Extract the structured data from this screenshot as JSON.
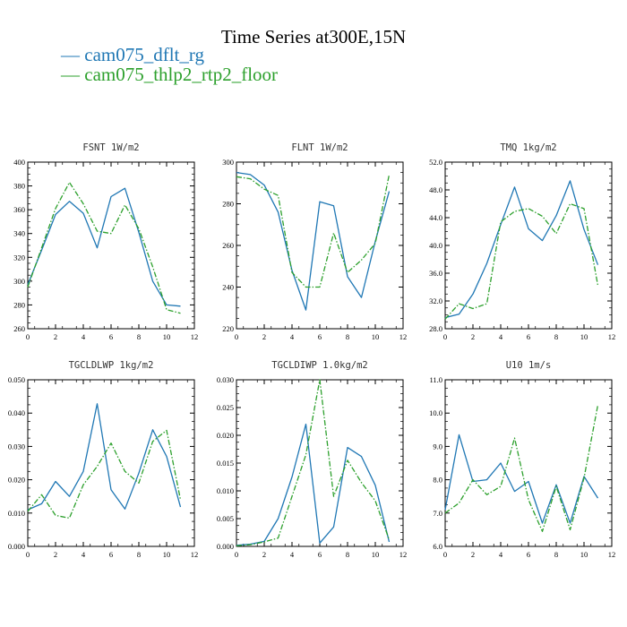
{
  "figure": {
    "title": "Time Series at300E,15N",
    "legend": [
      {
        "label": "— cam075_dflt_rg",
        "color": "#1f77b4"
      },
      {
        "label": "— cam075_thlp2_rtp2_floor",
        "color": "#2ca02c"
      }
    ]
  },
  "chart_data": [
    {
      "type": "line",
      "title": "FSNT   1W/m2",
      "x": [
        0,
        1,
        2,
        3,
        4,
        5,
        6,
        7,
        8,
        9,
        10,
        11
      ],
      "xlim": [
        0,
        12
      ],
      "xticks": [
        "0",
        "2",
        "4",
        "6",
        "8",
        "10",
        "12"
      ],
      "ylim": [
        260,
        400
      ],
      "yticks": [
        "260",
        "280",
        "300",
        "320",
        "340",
        "360",
        "380",
        "400"
      ],
      "series": [
        {
          "name": "cam075_dflt_rg",
          "color": "#1f77b4",
          "dashed": false,
          "values": [
            297,
            326,
            356,
            367,
            357,
            328,
            371,
            378,
            341,
            300,
            280,
            279
          ]
        },
        {
          "name": "cam075_thlp2_rtp2_floor",
          "color": "#2ca02c",
          "dashed": true,
          "values": [
            295,
            328,
            361,
            383,
            365,
            342,
            340,
            364,
            344,
            312,
            276,
            273
          ]
        }
      ]
    },
    {
      "type": "line",
      "title": "FLNT   1W/m2",
      "x": [
        0,
        1,
        2,
        3,
        4,
        5,
        6,
        7,
        8,
        9,
        10,
        11
      ],
      "xlim": [
        0,
        12
      ],
      "xticks": [
        "0",
        "2",
        "4",
        "6",
        "8",
        "10",
        "12"
      ],
      "ylim": [
        220,
        300
      ],
      "yticks": [
        "220",
        "240",
        "260",
        "280",
        "300"
      ],
      "series": [
        {
          "name": "cam075_dflt_rg",
          "color": "#1f77b4",
          "dashed": false,
          "values": [
            295,
            294,
            289,
            276,
            248,
            229,
            281,
            279,
            245,
            235,
            262,
            286
          ]
        },
        {
          "name": "cam075_thlp2_rtp2_floor",
          "color": "#2ca02c",
          "dashed": true,
          "values": [
            293,
            292,
            287,
            284,
            247,
            240,
            240,
            266,
            247,
            253,
            261,
            294
          ]
        }
      ]
    },
    {
      "type": "line",
      "title": "TMQ   1kg/m2",
      "x": [
        0,
        1,
        2,
        3,
        4,
        5,
        6,
        7,
        8,
        9,
        10,
        11
      ],
      "xlim": [
        0,
        12
      ],
      "xticks": [
        "0",
        "2",
        "4",
        "6",
        "8",
        "10",
        "12"
      ],
      "ylim": [
        28,
        52
      ],
      "yticks": [
        "28.0",
        "32.0",
        "36.0",
        "40.0",
        "44.0",
        "48.0",
        "52.0"
      ],
      "series": [
        {
          "name": "cam075_dflt_rg",
          "color": "#1f77b4",
          "dashed": false,
          "values": [
            29.6,
            30.1,
            33.0,
            37.4,
            43.0,
            48.4,
            42.4,
            40.7,
            44.3,
            49.3,
            42.3,
            37.2
          ]
        },
        {
          "name": "cam075_thlp2_rtp2_floor",
          "color": "#2ca02c",
          "dashed": true,
          "values": [
            29.4,
            31.6,
            30.9,
            31.6,
            43.4,
            44.9,
            45.3,
            44.2,
            41.7,
            46.0,
            45.3,
            34.2
          ]
        }
      ]
    },
    {
      "type": "line",
      "title": "TGCLDLWP   1kg/m2",
      "x": [
        0,
        1,
        2,
        3,
        4,
        5,
        6,
        7,
        8,
        9,
        10,
        11
      ],
      "xlim": [
        0,
        12
      ],
      "xticks": [
        "0",
        "2",
        "4",
        "6",
        "8",
        "10",
        "12"
      ],
      "ylim": [
        0,
        0.05
      ],
      "yticks": [
        "0.000",
        "0.010",
        "0.020",
        "0.030",
        "0.040",
        "0.050"
      ],
      "series": [
        {
          "name": "cam075_dflt_rg",
          "color": "#1f77b4",
          "dashed": false,
          "values": [
            0.011,
            0.0128,
            0.0195,
            0.015,
            0.0225,
            0.0428,
            0.017,
            0.0112,
            0.022,
            0.035,
            0.027,
            0.0118
          ]
        },
        {
          "name": "cam075_thlp2_rtp2_floor",
          "color": "#2ca02c",
          "dashed": true,
          "values": [
            0.0105,
            0.0155,
            0.0093,
            0.0085,
            0.0185,
            0.024,
            0.031,
            0.0225,
            0.019,
            0.0315,
            0.0348,
            0.014
          ]
        }
      ]
    },
    {
      "type": "line",
      "title": "TGCLDIWP   1.0kg/m2",
      "x": [
        0,
        1,
        2,
        3,
        4,
        5,
        6,
        7,
        8,
        9,
        10,
        11
      ],
      "xlim": [
        0,
        12
      ],
      "xticks": [
        "0",
        "2",
        "4",
        "6",
        "8",
        "10",
        "12"
      ],
      "ylim": [
        0,
        0.03
      ],
      "yticks": [
        "0.000",
        "0.005",
        "0.010",
        "0.015",
        "0.020",
        "0.025",
        "0.030"
      ],
      "series": [
        {
          "name": "cam075_dflt_rg",
          "color": "#1f77b4",
          "dashed": false,
          "values": [
            0.0002,
            0.0004,
            0.0009,
            0.005,
            0.0125,
            0.022,
            0.0006,
            0.0035,
            0.0178,
            0.0162,
            0.011,
            0.0008
          ]
        },
        {
          "name": "cam075_thlp2_rtp2_floor",
          "color": "#2ca02c",
          "dashed": true,
          "values": [
            0.0001,
            0.0003,
            0.0008,
            0.0015,
            0.009,
            0.0165,
            0.03,
            0.009,
            0.0155,
            0.0115,
            0.0082,
            0.0012
          ]
        }
      ]
    },
    {
      "type": "line",
      "title": "U10   1m/s",
      "x": [
        0,
        1,
        2,
        3,
        4,
        5,
        6,
        7,
        8,
        9,
        10,
        11
      ],
      "xlim": [
        0,
        12
      ],
      "xticks": [
        "0",
        "2",
        "4",
        "6",
        "8",
        "10",
        "12"
      ],
      "ylim": [
        6,
        11
      ],
      "yticks": [
        "6.0",
        "7.0",
        "8.0",
        "9.0",
        "10.0",
        "11.0"
      ],
      "series": [
        {
          "name": "cam075_dflt_rg",
          "color": "#1f77b4",
          "dashed": false,
          "values": [
            7.1,
            9.35,
            7.95,
            8.0,
            8.5,
            7.65,
            7.95,
            6.7,
            7.85,
            6.7,
            8.1,
            7.45
          ]
        },
        {
          "name": "cam075_thlp2_rtp2_floor",
          "color": "#2ca02c",
          "dashed": true,
          "values": [
            7.0,
            7.3,
            8.0,
            7.55,
            7.8,
            9.25,
            7.4,
            6.45,
            7.8,
            6.5,
            8.05,
            10.25
          ]
        }
      ]
    }
  ]
}
